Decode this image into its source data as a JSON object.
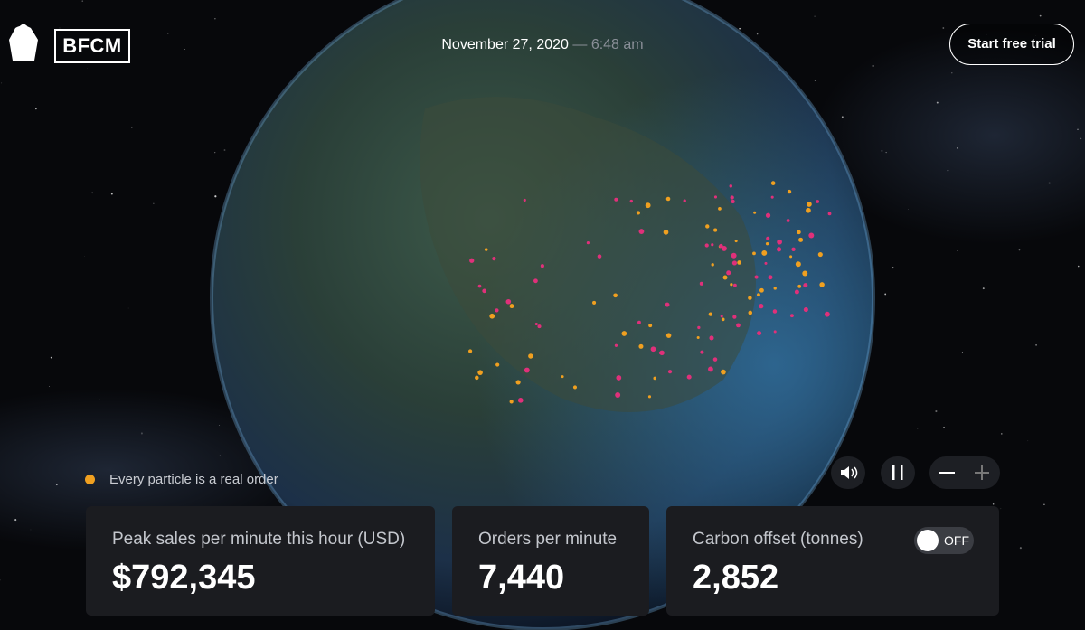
{
  "header": {
    "logo": "BFCM",
    "date": "November 27, 2020",
    "separator": "—",
    "time": "6:48 am",
    "cta": "Start free trial"
  },
  "legend": "Every particle is a real order",
  "stats": [
    {
      "label": "Peak sales per minute this hour (USD)",
      "value": "$792,345"
    },
    {
      "label": "Orders per minute",
      "value": "7,440"
    },
    {
      "label": "Carbon offset (tonnes)",
      "value": "2,852",
      "toggle": "OFF"
    }
  ]
}
